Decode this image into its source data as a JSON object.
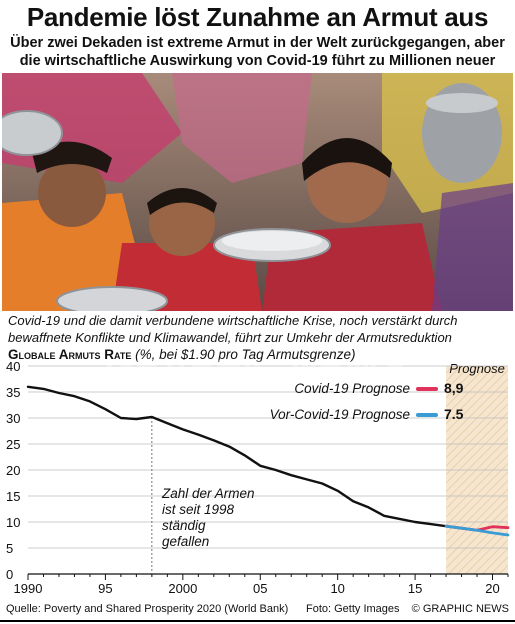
{
  "header": {
    "title": "Pandemie löst Zunahme an Armut aus",
    "subtitle_line1": "Über zwei Dekaden ist extreme Armut in der Welt zurückgegangen, aber",
    "subtitle_line2": "die wirtschaftliche Auswirkung von Covid-19 führt zu Millionen neuer Armen"
  },
  "caption": {
    "line1": "Covid-19 und die damit verbundene wirtschaftliche Krise, noch verstärkt durch",
    "line2": "bewaffnete Konflikte und Klimawandel, führt zur Umkehr der Armutsreduktion"
  },
  "chart_header": {
    "bold": "Globale Armuts Rate",
    "note": " (%, bei $1.90 pro Tag Armutsgrenze)"
  },
  "chart_data": {
    "type": "line",
    "ylim": [
      0,
      40
    ],
    "yticks": [
      0,
      5,
      10,
      15,
      20,
      25,
      30,
      35,
      40
    ],
    "xlim": [
      1990,
      2021
    ],
    "xticks": [
      1990,
      1995,
      2000,
      2005,
      2010,
      2015,
      2020
    ],
    "xtick_labels": [
      "1990",
      "95",
      "2000",
      "05",
      "10",
      "15",
      "20"
    ],
    "forecast_label": "Prognose",
    "forecast_start": 2017,
    "annotation": [
      "Zahl der Armen",
      "ist seit 1998",
      "ständig",
      "gefallen"
    ],
    "annotation_x": 1998,
    "series": [
      {
        "values": [
          [
            1990,
            36
          ],
          [
            1991,
            35.6
          ],
          [
            1992,
            34.8
          ],
          [
            1993,
            34.2
          ],
          [
            1994,
            33.2
          ],
          [
            1995,
            31.7
          ],
          [
            1996,
            30
          ],
          [
            1997,
            29.8
          ],
          [
            1998,
            30.2
          ],
          [
            1999,
            29
          ],
          [
            2000,
            27.8
          ],
          [
            2001,
            26.8
          ],
          [
            2002,
            25.7
          ],
          [
            2003,
            24.5
          ],
          [
            2004,
            22.8
          ],
          [
            2005,
            20.8
          ],
          [
            2006,
            20
          ],
          [
            2007,
            19
          ],
          [
            2008,
            18.2
          ],
          [
            2009,
            17.4
          ],
          [
            2010,
            16
          ],
          [
            2011,
            14
          ],
          [
            2012,
            12.8
          ],
          [
            2013,
            11.2
          ],
          [
            2014,
            10.6
          ],
          [
            2015,
            10
          ],
          [
            2016,
            9.6
          ],
          [
            2017,
            9.2
          ]
        ],
        "color": "#111111"
      },
      {
        "name": "Covid-19 Prognose",
        "value_label": "8,9",
        "values": [
          [
            2017,
            9.2
          ],
          [
            2018,
            8.8
          ],
          [
            2019,
            8.4
          ],
          [
            2020,
            9.1
          ],
          [
            2021,
            8.9
          ]
        ],
        "color": "#e0325a"
      },
      {
        "name": "Vor-Covid-19 Prognose",
        "value_label": "7.5",
        "values": [
          [
            2017,
            9.2
          ],
          [
            2018,
            8.8
          ],
          [
            2019,
            8.4
          ],
          [
            2020,
            7.9
          ],
          [
            2021,
            7.5
          ]
        ],
        "color": "#3a9bd5"
      }
    ]
  },
  "watermark": "GRAPHIC NEWS",
  "footer": {
    "source": "Quelle: Poverty and Shared Prosperity 2020 (World Bank)",
    "photo": "Foto: Getty Images",
    "credit": "© GRAPHIC NEWS"
  }
}
